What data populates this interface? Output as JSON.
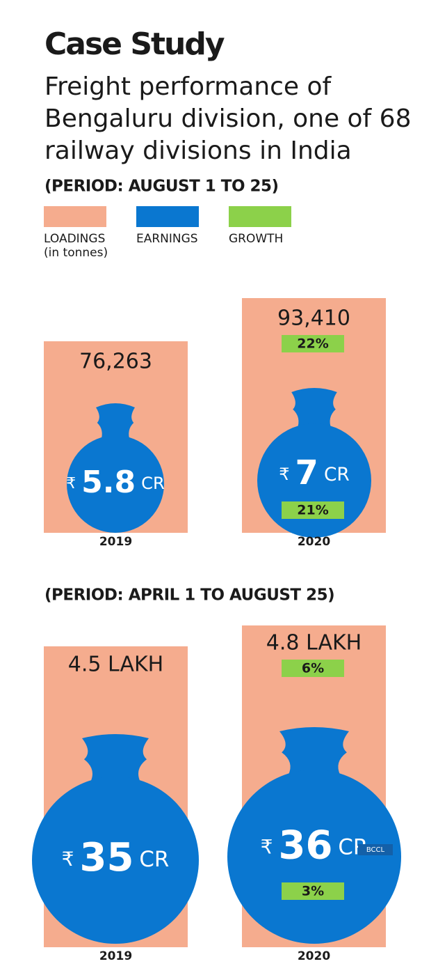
{
  "header": {
    "title": "Case Study",
    "subtitle_lines": [
      "Freight performance of",
      "Bengaluru division, one of 68",
      "railway divisions in India"
    ]
  },
  "legend": [
    {
      "label": "LOADINGS",
      "note": "(in tonnes)",
      "color": "#f5ac8e"
    },
    {
      "label": "EARNINGS",
      "color": "#0a77d0"
    },
    {
      "label": "GROWTH",
      "color": "#8cd14a"
    }
  ],
  "panels": [
    {
      "period": "(PERIOD: AUGUST 1 TO 25)",
      "items": [
        {
          "year": "2019",
          "loading": "76,263",
          "currency": "₹",
          "amount": "5.8",
          "unit": "CR"
        },
        {
          "year": "2020",
          "loading": "93,410",
          "loading_growth": "22%",
          "currency": "₹",
          "amount": "7",
          "unit": "CR",
          "earnings_growth": "21%"
        }
      ]
    },
    {
      "period": "(PERIOD: APRIL 1 TO AUGUST 25)",
      "items": [
        {
          "year": "2019",
          "loading": "4.5 LAKH",
          "currency": "₹",
          "amount": "35",
          "unit": "CR"
        },
        {
          "year": "2020",
          "loading": "4.8 LAKH",
          "loading_growth": "6%",
          "currency": "₹",
          "amount": "36",
          "unit": "CR",
          "earnings_growth": "3%"
        }
      ]
    }
  ],
  "credit": "BCCL"
}
